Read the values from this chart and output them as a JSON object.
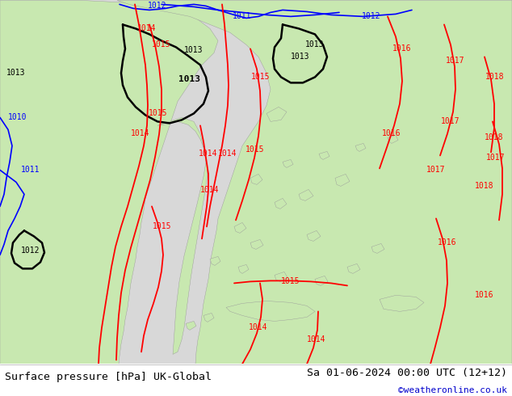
{
  "title_left": "Surface pressure [hPa] UK-Global",
  "title_right": "Sa 01-06-2024 00:00 UTC (12+12)",
  "credit": "©weatheronline.co.uk",
  "background_color": "#e8e8e8",
  "land_color": "#c8e8b0",
  "sea_color": "#d8d8d8",
  "fig_width": 6.34,
  "fig_height": 4.9,
  "dpi": 100,
  "bottom_bar_color": "#ffffff",
  "title_fontsize": 9.5,
  "credit_color": "#0000cc",
  "credit_fontsize": 8
}
